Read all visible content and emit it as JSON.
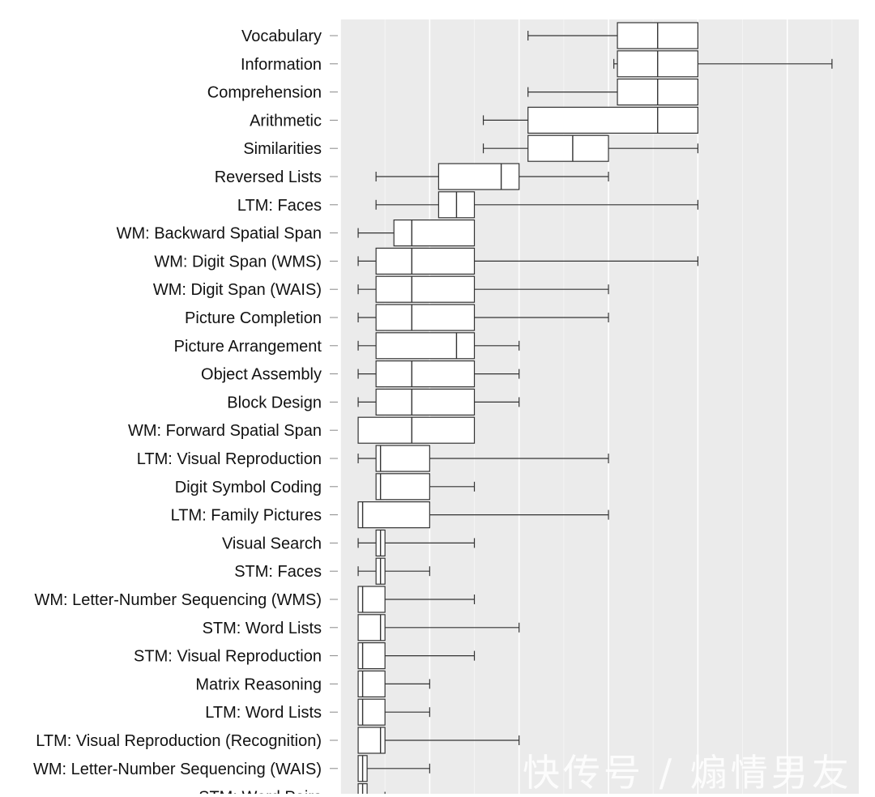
{
  "chart_data": {
    "type": "boxplot",
    "orientation": "horizontal",
    "title": "",
    "xlabel": "",
    "ylabel": "",
    "xlim": [
      0,
      29
    ],
    "grid": true,
    "categories": [
      {
        "label": "Vocabulary",
        "min": 10.5,
        "q1": 15.5,
        "median": 17.75,
        "q3": 20,
        "max": 20
      },
      {
        "label": "Information",
        "min": 15.3,
        "q1": 15.5,
        "median": 17.75,
        "q3": 20,
        "max": 27.5
      },
      {
        "label": "Comprehension",
        "min": 10.5,
        "q1": 15.5,
        "median": 17.75,
        "q3": 20,
        "max": 20
      },
      {
        "label": "Arithmetic",
        "min": 8,
        "q1": 10.5,
        "median": 17.75,
        "q3": 20,
        "max": 20
      },
      {
        "label": "Similarities",
        "min": 8,
        "q1": 10.5,
        "median": 13,
        "q3": 15,
        "max": 20
      },
      {
        "label": "Reversed Lists",
        "min": 2,
        "q1": 5.5,
        "median": 9,
        "q3": 10,
        "max": 15
      },
      {
        "label": "LTM: Faces",
        "min": 2,
        "q1": 5.5,
        "median": 6.5,
        "q3": 7.5,
        "max": 20
      },
      {
        "label": "WM: Backward Spatial Span",
        "min": 1,
        "q1": 3,
        "median": 4,
        "q3": 7.5,
        "max": 7.5
      },
      {
        "label": "WM: Digit Span (WMS)",
        "min": 1,
        "q1": 2,
        "median": 4,
        "q3": 7.5,
        "max": 20
      },
      {
        "label": "WM: Digit Span (WAIS)",
        "min": 1,
        "q1": 2,
        "median": 4,
        "q3": 7.5,
        "max": 15
      },
      {
        "label": "Picture Completion",
        "min": 1,
        "q1": 2,
        "median": 4,
        "q3": 7.5,
        "max": 15
      },
      {
        "label": "Picture Arrangement",
        "min": 1,
        "q1": 2,
        "median": 6.5,
        "q3": 7.5,
        "max": 10
      },
      {
        "label": "Object Assembly",
        "min": 1,
        "q1": 2,
        "median": 4,
        "q3": 7.5,
        "max": 10
      },
      {
        "label": "Block Design",
        "min": 1,
        "q1": 2,
        "median": 4,
        "q3": 7.5,
        "max": 10
      },
      {
        "label": "WM: Forward Spatial Span",
        "min": 1,
        "q1": 1,
        "median": 4,
        "q3": 7.5,
        "max": 7.5
      },
      {
        "label": "LTM: Visual Reproduction",
        "min": 1,
        "q1": 2,
        "median": 2.25,
        "q3": 5,
        "max": 15
      },
      {
        "label": "Digit Symbol Coding",
        "min": 2,
        "q1": 2,
        "median": 2.25,
        "q3": 5,
        "max": 7.5
      },
      {
        "label": "LTM: Family Pictures",
        "min": 1,
        "q1": 1,
        "median": 1.25,
        "q3": 5,
        "max": 15
      },
      {
        "label": "Visual Search",
        "min": 1,
        "q1": 2,
        "median": 2.25,
        "q3": 2.5,
        "max": 7.5
      },
      {
        "label": "STM: Faces",
        "min": 1,
        "q1": 2,
        "median": 2.25,
        "q3": 2.5,
        "max": 5
      },
      {
        "label": "WM: Letter-Number Sequencing (WMS)",
        "min": 1,
        "q1": 1,
        "median": 1.25,
        "q3": 2.5,
        "max": 7.5
      },
      {
        "label": "STM: Word Lists",
        "min": 1,
        "q1": 1,
        "median": 2.25,
        "q3": 2.5,
        "max": 10
      },
      {
        "label": "STM: Visual Reproduction",
        "min": 1,
        "q1": 1,
        "median": 1.25,
        "q3": 2.5,
        "max": 7.5
      },
      {
        "label": "Matrix Reasoning",
        "min": 1,
        "q1": 1,
        "median": 1.25,
        "q3": 2.5,
        "max": 5
      },
      {
        "label": "LTM: Word Lists",
        "min": 1,
        "q1": 1,
        "median": 1.25,
        "q3": 2.5,
        "max": 5
      },
      {
        "label": "LTM: Visual Reproduction (Recognition)",
        "min": 1,
        "q1": 1,
        "median": 2.25,
        "q3": 2.5,
        "max": 10
      },
      {
        "label": "WM: Letter-Number Sequencing (WAIS)",
        "min": 1,
        "q1": 1,
        "median": 1.25,
        "q3": 1.5,
        "max": 5
      },
      {
        "label": "STM: Word Pairs",
        "min": 1,
        "q1": 1,
        "median": 1.25,
        "q3": 1.5,
        "max": 2.5
      }
    ],
    "colors": {
      "panel_background": "#ebebeb",
      "grid_major": "#ffffff",
      "grid_minor": "#f5f5f5",
      "box_fill": "#ffffff",
      "box_stroke": "#333333",
      "label_text": "#111111",
      "tick": "#888888"
    }
  },
  "watermark": {
    "text": "快传号 / 煽情男友"
  }
}
